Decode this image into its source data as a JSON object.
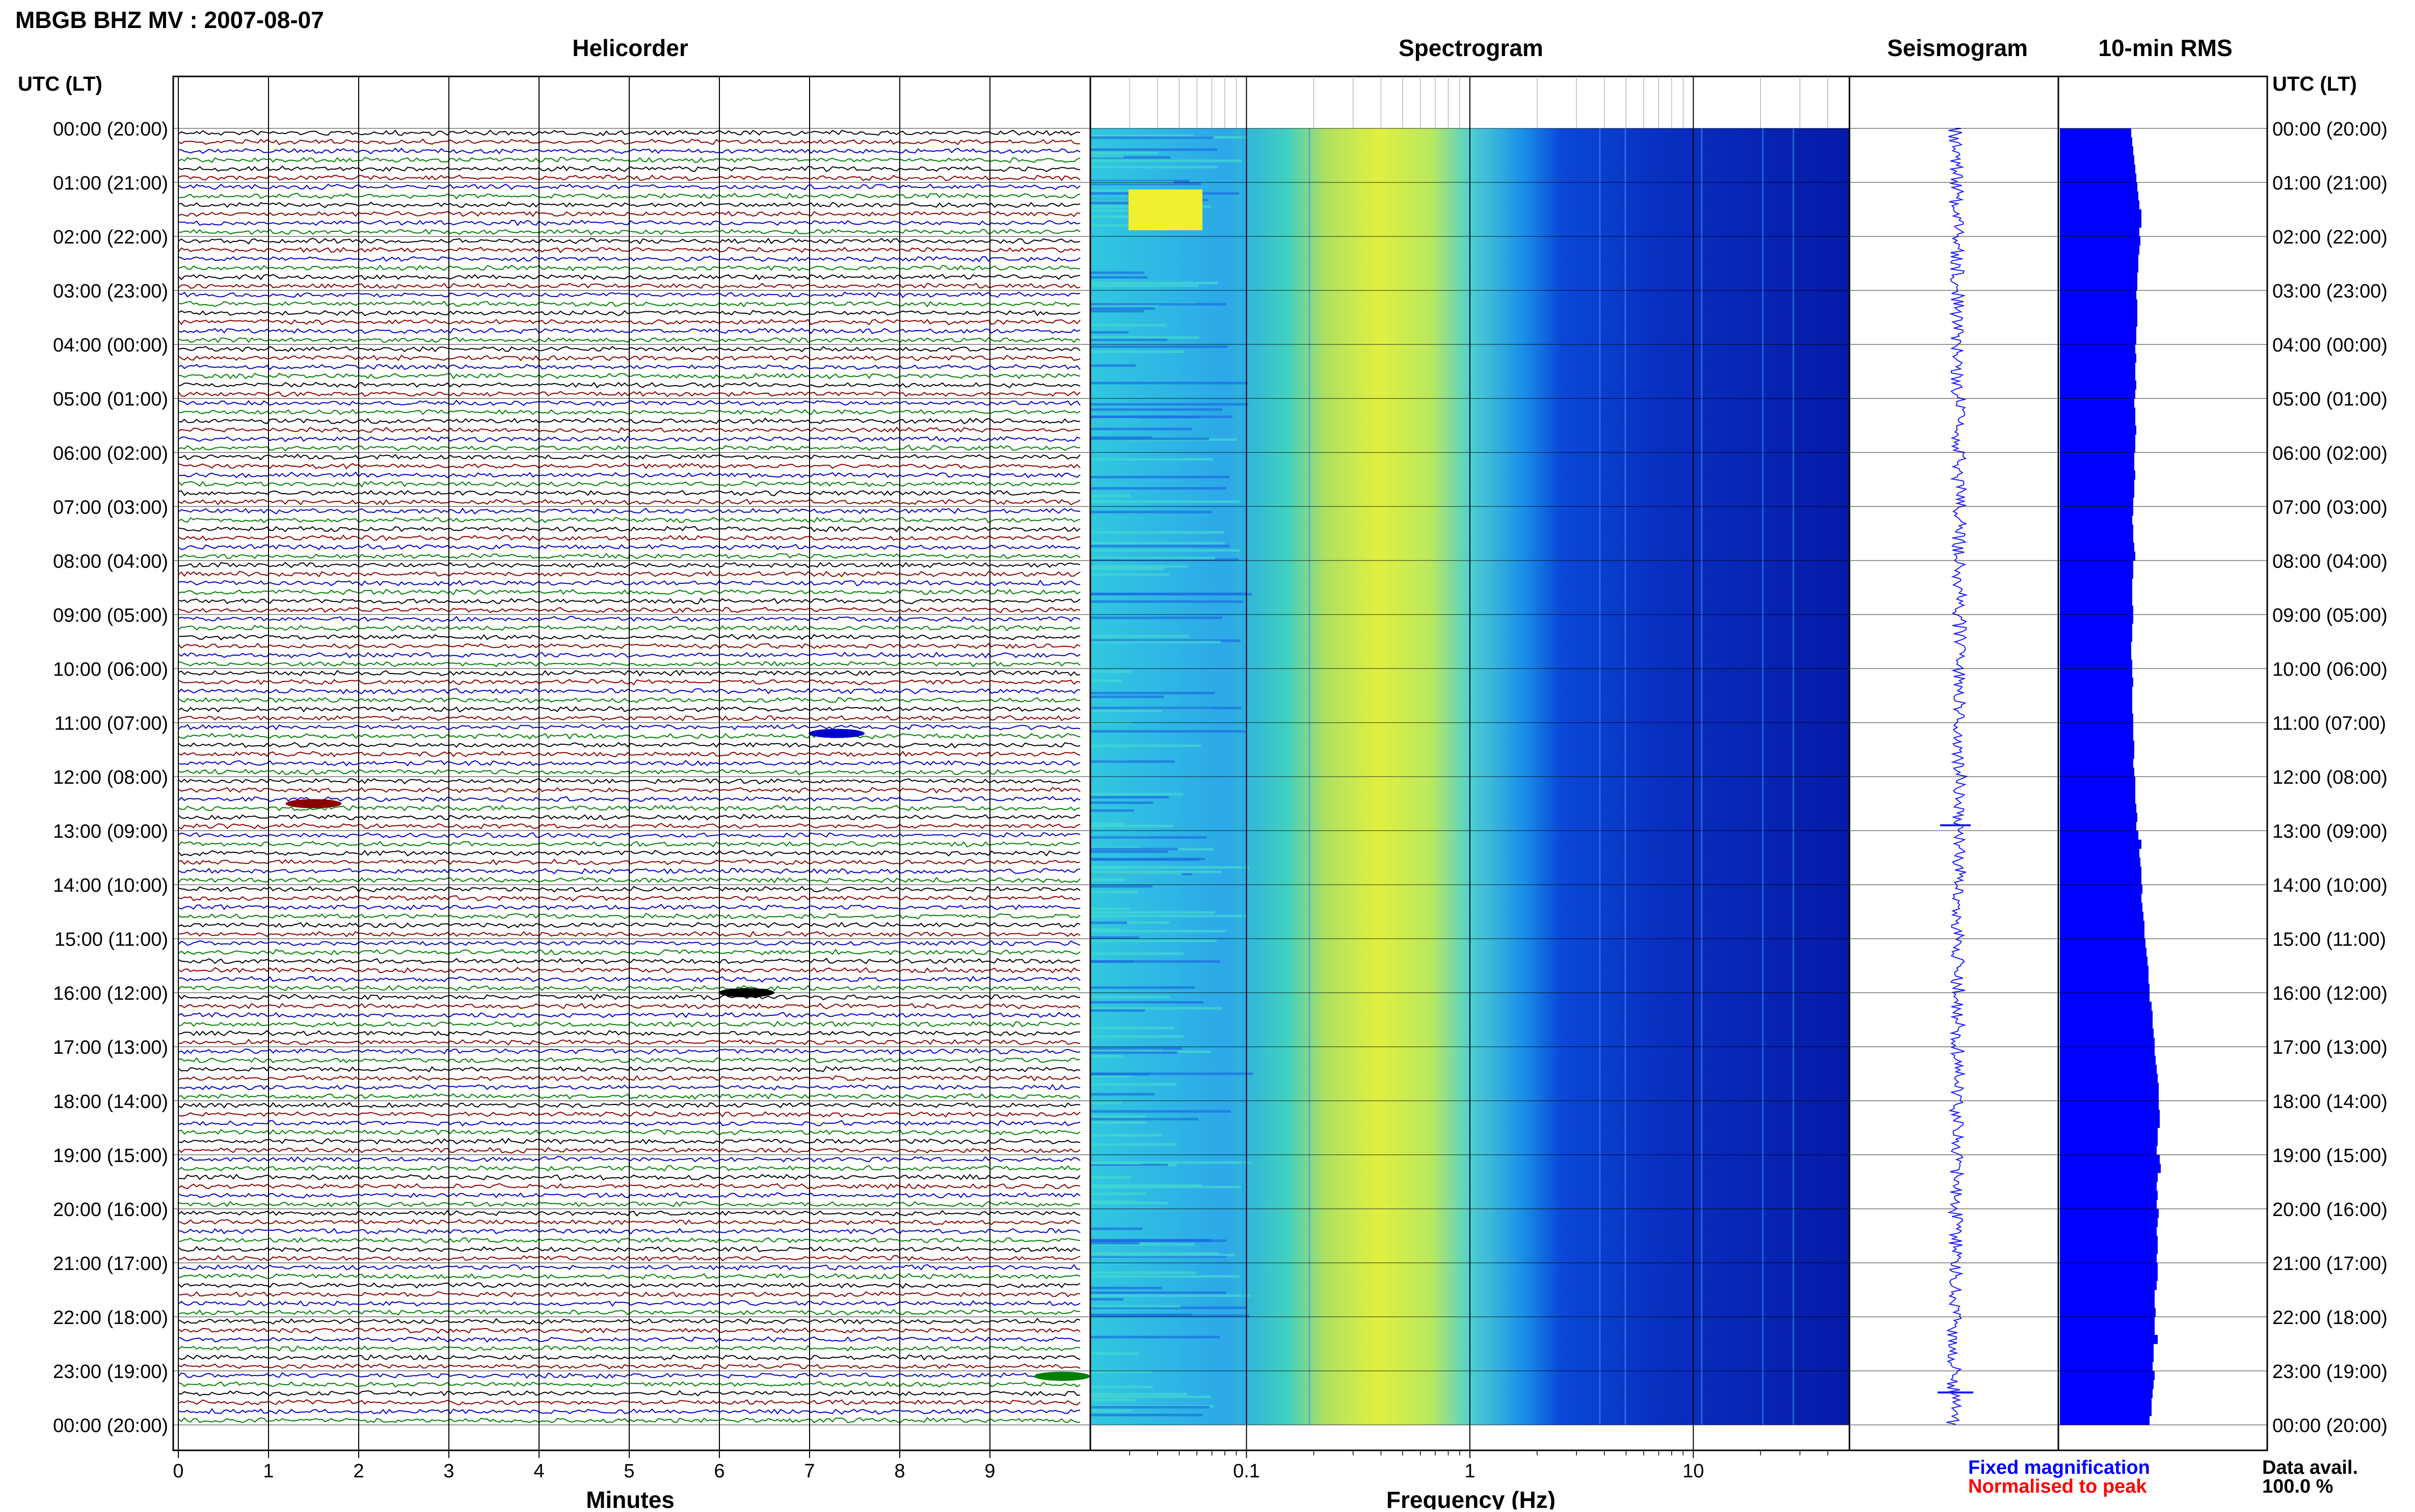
{
  "header": {
    "title": "MBGB BHZ MV : 2007-08-07"
  },
  "panels": {
    "helicorder": "Helicorder",
    "spectrogram": "Spectrogram",
    "seismogram": "Seismogram",
    "rms": "10-min RMS"
  },
  "axis": {
    "utc_lt_label": "UTC (LT)",
    "minutes_label": "Minutes",
    "frequency_label": "Frequency (Hz)"
  },
  "time_labels": [
    "00:00 (20:00)",
    "01:00 (21:00)",
    "02:00 (22:00)",
    "03:00 (23:00)",
    "04:00 (00:00)",
    "05:00 (01:00)",
    "06:00 (02:00)",
    "07:00 (03:00)",
    "08:00 (04:00)",
    "09:00 (05:00)",
    "10:00 (06:00)",
    "11:00 (07:00)",
    "12:00 (08:00)",
    "13:00 (09:00)",
    "14:00 (10:00)",
    "15:00 (11:00)",
    "16:00 (12:00)",
    "17:00 (13:00)",
    "18:00 (14:00)",
    "19:00 (15:00)",
    "20:00 (16:00)",
    "21:00 (17:00)",
    "22:00 (18:00)",
    "23:00 (19:00)",
    "00:00 (20:00)"
  ],
  "minute_ticks": [
    "0",
    "1",
    "2",
    "3",
    "4",
    "5",
    "6",
    "7",
    "8",
    "9"
  ],
  "freq_ticks": [
    "0.1",
    "1",
    "10"
  ],
  "legend": {
    "fixed": "Fixed magnification",
    "normalised": "Normalised to peak",
    "fixed_color": "#0000ff",
    "normalised_color": "#ff0000"
  },
  "availability": {
    "label": "Data avail.",
    "value": "100.0 %"
  },
  "colors": {
    "trace_cycle": [
      "#000000",
      "#8b0000",
      "#0000cc",
      "#008000"
    ],
    "seismogram": "#1a1aff",
    "rms": "#0000ff",
    "grid": "#000000"
  },
  "chart_data": {
    "type": "heatmap",
    "title": "MBGB BHZ MV : 2007-08-07",
    "helicorder": {
      "type": "line",
      "xlabel": "Minutes",
      "xlim": [
        0,
        10
      ],
      "rows_per_hour": 6,
      "hours": 24,
      "events": [
        {
          "hour": 12.5,
          "minute": 1.5,
          "color": "#8b0000"
        },
        {
          "hour": 11.2,
          "minute": 7.3,
          "color": "#0000cc"
        },
        {
          "hour": 16.0,
          "minute": 6.3,
          "color": "#000000"
        },
        {
          "hour": 23.1,
          "minute": 9.8,
          "color": "#008000"
        }
      ]
    },
    "spectrogram": {
      "xlabel": "Frequency (Hz)",
      "xscale": "log",
      "xlim": [
        0.02,
        50
      ],
      "ylim_hours": [
        0,
        24
      ]
    },
    "rms": {
      "type": "bar",
      "title": "10-min RMS",
      "values": [
        0.7,
        0.71,
        0.72,
        0.73,
        0.74,
        0.75,
        0.76,
        0.77,
        0.78,
        0.8,
        0.8,
        0.78,
        0.79,
        0.78,
        0.77,
        0.77,
        0.76,
        0.76,
        0.75,
        0.76,
        0.76,
        0.76,
        0.75,
        0.75,
        0.74,
        0.75,
        0.74,
        0.74,
        0.75,
        0.74,
        0.73,
        0.74,
        0.74,
        0.75,
        0.74,
        0.74,
        0.73,
        0.73,
        0.74,
        0.73,
        0.73,
        0.72,
        0.72,
        0.71,
        0.72,
        0.72,
        0.73,
        0.74,
        0.72,
        0.72,
        0.71,
        0.71,
        0.71,
        0.72,
        0.72,
        0.71,
        0.71,
        0.7,
        0.7,
        0.71,
        0.71,
        0.72,
        0.71,
        0.71,
        0.71,
        0.72,
        0.72,
        0.72,
        0.73,
        0.73,
        0.72,
        0.73,
        0.74,
        0.74,
        0.74,
        0.75,
        0.76,
        0.75,
        0.77,
        0.8,
        0.78,
        0.79,
        0.8,
        0.8,
        0.81,
        0.8,
        0.81,
        0.82,
        0.83,
        0.83,
        0.84,
        0.85,
        0.86,
        0.87,
        0.87,
        0.88,
        0.88,
        0.9,
        0.91,
        0.91,
        0.92,
        0.93,
        0.93,
        0.94,
        0.95,
        0.96,
        0.97,
        0.97,
        0.97,
        0.98,
        0.98,
        0.96,
        0.96,
        0.95,
        0.98,
        0.99,
        0.96,
        0.95,
        0.96,
        0.95,
        0.97,
        0.96,
        0.95,
        0.96,
        0.96,
        0.95,
        0.96,
        0.96,
        0.95,
        0.93,
        0.93,
        0.94,
        0.93,
        0.93,
        0.96,
        0.92,
        0.92,
        0.91,
        0.93,
        0.92,
        0.91,
        0.9,
        0.9,
        0.88
      ]
    },
    "seismogram": {
      "type": "line",
      "title": "Seismogram",
      "spikes": [
        {
          "hour": 12.9,
          "amplitude": 0.3
        },
        {
          "hour": 23.4,
          "amplitude": 0.35
        }
      ]
    }
  }
}
